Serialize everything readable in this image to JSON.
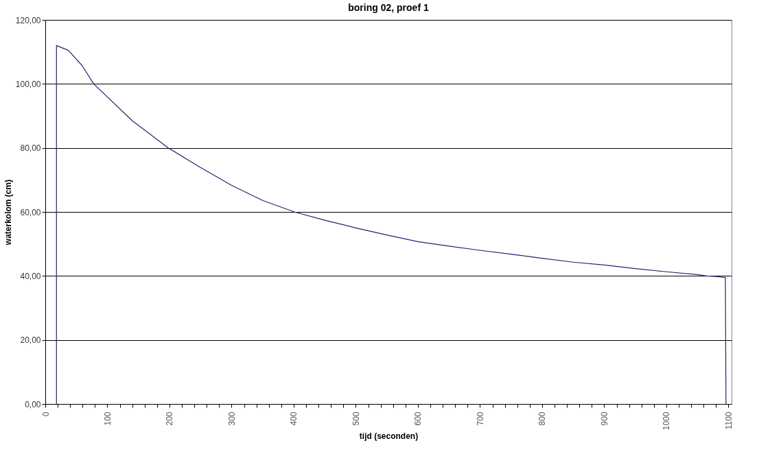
{
  "chart_data": {
    "type": "line",
    "title": "boring 02, proef 1",
    "xlabel": "tijd (seconden)",
    "ylabel": "waterkolom (cm)",
    "x": [
      18,
      18,
      37,
      59,
      78,
      140,
      198,
      249,
      300,
      350,
      401,
      450,
      500,
      550,
      600,
      650,
      700,
      750,
      800,
      850,
      900,
      950,
      1000,
      1050,
      1065,
      1080,
      1095,
      1096
    ],
    "series": [
      {
        "color": "#23236e",
        "values": [
          0,
          112,
          110.5,
          105.8,
          100,
          88.5,
          80,
          74,
          68.3,
          63.6,
          60,
          57.4,
          55,
          52.8,
          50.7,
          49.3,
          48,
          46.8,
          45.5,
          44.3,
          43.4,
          42.3,
          41.3,
          40.4,
          40,
          39.8,
          39.5,
          0
        ]
      }
    ],
    "xlim": [
      0,
      1105
    ],
    "xticks": [
      0,
      {
        "value": 20,
        "label": null
      },
      {
        "value": 40,
        "label": null
      },
      {
        "value": 60,
        "label": null
      },
      {
        "value": 80,
        "label": null
      },
      100,
      {
        "value": 120,
        "label": null
      },
      {
        "value": 140,
        "label": null
      },
      {
        "value": 160,
        "label": null
      },
      {
        "value": 180,
        "label": null
      },
      200,
      {
        "value": 220,
        "label": null
      },
      {
        "value": 240,
        "label": null
      },
      {
        "value": 260,
        "label": null
      },
      {
        "value": 280,
        "label": null
      },
      300,
      {
        "value": 320,
        "label": null
      },
      {
        "value": 340,
        "label": null
      },
      {
        "value": 360,
        "label": null
      },
      {
        "value": 380,
        "label": null
      },
      400,
      {
        "value": 420,
        "label": null
      },
      {
        "value": 440,
        "label": null
      },
      {
        "value": 460,
        "label": null
      },
      {
        "value": 480,
        "label": null
      },
      500,
      {
        "value": 520,
        "label": null
      },
      {
        "value": 540,
        "label": null
      },
      {
        "value": 560,
        "label": null
      },
      {
        "value": 580,
        "label": null
      },
      600,
      {
        "value": 620,
        "label": null
      },
      {
        "value": 640,
        "label": null
      },
      {
        "value": 660,
        "label": null
      },
      {
        "value": 680,
        "label": null
      },
      700,
      {
        "value": 720,
        "label": null
      },
      {
        "value": 740,
        "label": null
      },
      {
        "value": 760,
        "label": null
      },
      {
        "value": 780,
        "label": null
      },
      800,
      {
        "value": 820,
        "label": null
      },
      {
        "value": 840,
        "label": null
      },
      {
        "value": 860,
        "label": null
      },
      {
        "value": 880,
        "label": null
      },
      900,
      {
        "value": 920,
        "label": null
      },
      {
        "value": 940,
        "label": null
      },
      {
        "value": 960,
        "label": null
      },
      {
        "value": 980,
        "label": null
      },
      1000,
      {
        "value": 1020,
        "label": null
      },
      {
        "value": 1040,
        "label": null
      },
      {
        "value": 1060,
        "label": null
      },
      {
        "value": 1080,
        "label": null
      },
      1100
    ],
    "ylim": [
      0,
      120
    ],
    "yticks": [
      {
        "value": 0,
        "label": "0,00"
      },
      {
        "value": 20,
        "label": "20,00"
      },
      {
        "value": 40,
        "label": "40,00"
      },
      {
        "value": 60,
        "label": "60,00"
      },
      {
        "value": 80,
        "label": "80,00"
      },
      {
        "value": 100,
        "label": "100,00"
      },
      {
        "value": 120,
        "label": "120,00"
      }
    ],
    "grid": "y",
    "marker": "none",
    "line_style": "solid"
  }
}
